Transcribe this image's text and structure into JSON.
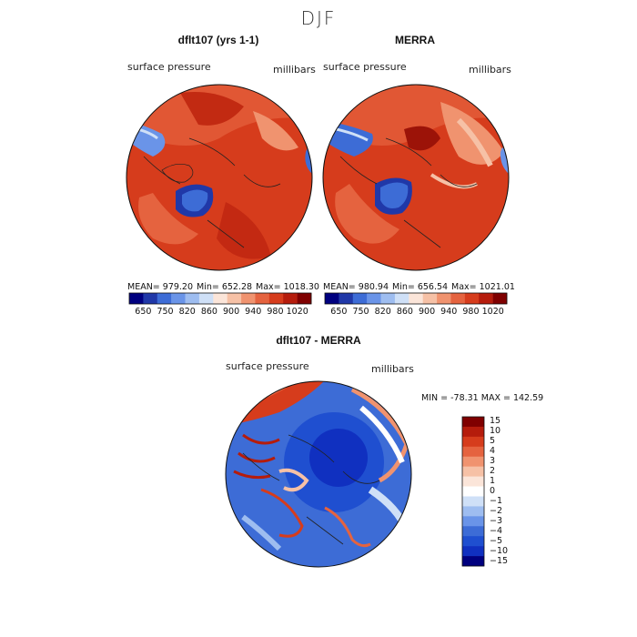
{
  "page_title": "DJF",
  "chart_data": [
    {
      "type": "heatmap",
      "title": "dflt107 (yrs 1-1)",
      "variable": "surface pressure",
      "units": "millibars",
      "stats": {
        "mean": "MEAN= 979.20",
        "min": "Min= 652.28",
        "max": "Max= 1018.30"
      },
      "colorbar": {
        "colors": [
          "#00007f",
          "#2038a8",
          "#3d6cd6",
          "#6a94e8",
          "#9ebdf0",
          "#cfe0f7",
          "#fbe5d9",
          "#f6c1a6",
          "#f0936f",
          "#e5633f",
          "#d63c1c",
          "#b51c0c",
          "#7f0000"
        ],
        "tick_labels": [
          "650",
          "750",
          "820",
          "860",
          "900",
          "940",
          "980",
          "1020"
        ]
      }
    },
    {
      "type": "heatmap",
      "title": "MERRA",
      "variable": "surface pressure",
      "units": "millibars",
      "stats": {
        "mean": "MEAN= 980.94",
        "min": "Min= 656.54",
        "max": "Max= 1021.01"
      },
      "colorbar": {
        "colors": [
          "#00007f",
          "#2038a8",
          "#3d6cd6",
          "#6a94e8",
          "#9ebdf0",
          "#cfe0f7",
          "#fbe5d9",
          "#f6c1a6",
          "#f0936f",
          "#e5633f",
          "#d63c1c",
          "#b51c0c",
          "#7f0000"
        ],
        "tick_labels": [
          "650",
          "750",
          "820",
          "860",
          "900",
          "940",
          "980",
          "1020"
        ]
      }
    },
    {
      "type": "heatmap",
      "title": "dflt107 - MERRA",
      "variable": "surface pressure",
      "units": "millibars",
      "stats_line": "MIN = -78.31 MAX = 142.59",
      "colorbar": {
        "colors": [
          "#7f0000",
          "#b51c0c",
          "#d63c1c",
          "#e5633f",
          "#f0936f",
          "#f6c1a6",
          "#fbe5d9",
          "#ffffff",
          "#cfe0f7",
          "#9ebdf0",
          "#6a94e8",
          "#3d6cd6",
          "#1f4fd0",
          "#1030c0",
          "#00007f"
        ],
        "tick_labels": [
          "15",
          "10",
          "5",
          "4",
          "3",
          "2",
          "1",
          "0",
          "−1",
          "−2",
          "−3",
          "−4",
          "−5",
          "−10",
          "−15"
        ]
      }
    }
  ]
}
